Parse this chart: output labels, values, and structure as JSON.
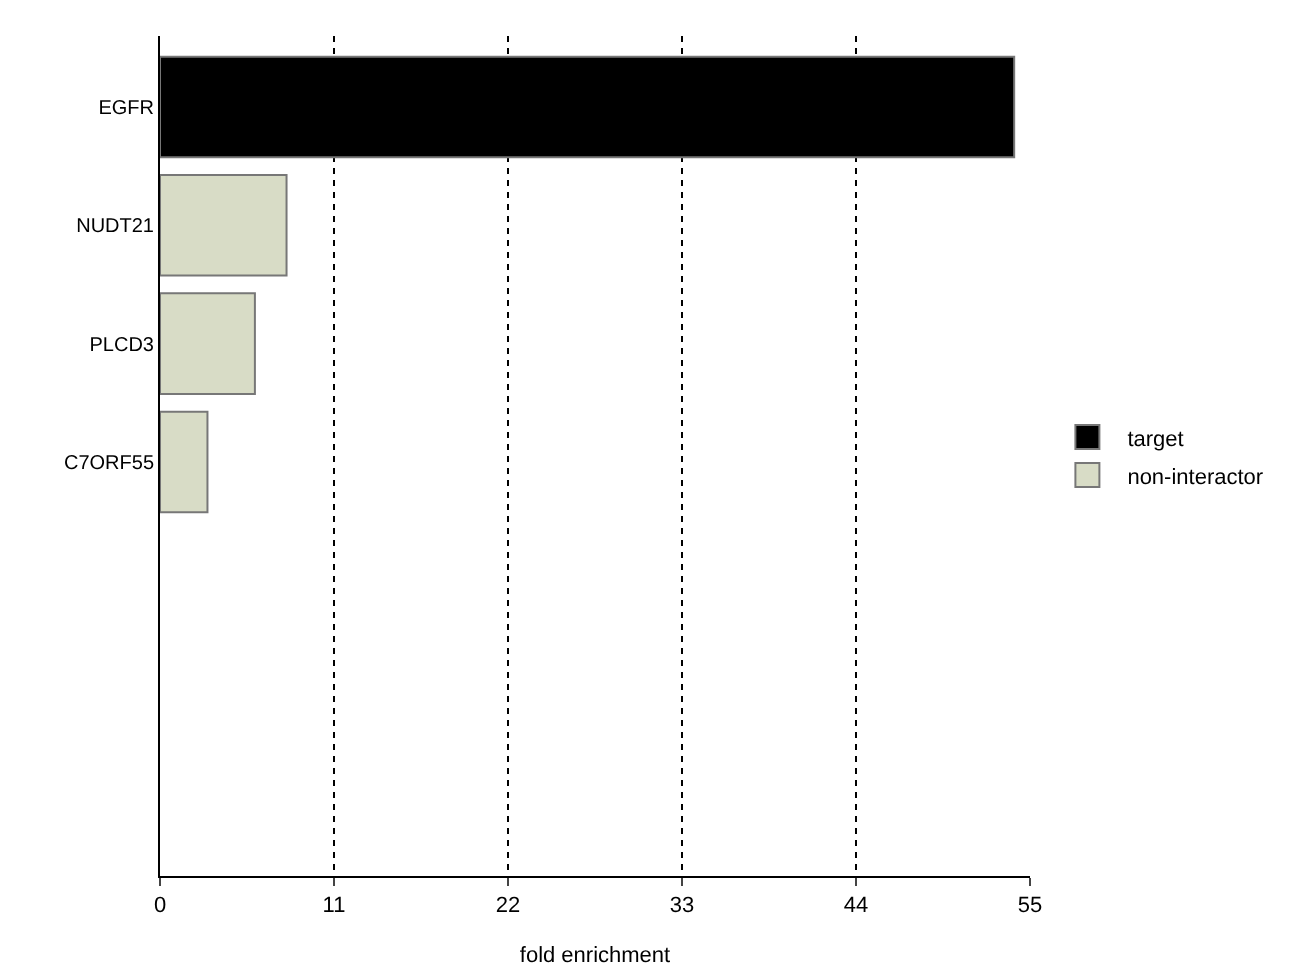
{
  "chart_data": {
    "type": "bar",
    "orientation": "horizontal",
    "xlabel": "fold enrichment",
    "categories": [
      "EGFR",
      "NUDT21",
      "PLCD3",
      "C7ORF55",
      null,
      null,
      null
    ],
    "series": [
      {
        "name": "target",
        "color": "#000000",
        "values": [
          54,
          null,
          null,
          null,
          null,
          null,
          null
        ]
      },
      {
        "name": "non-interactor",
        "color": "#d8dcc6",
        "values": [
          null,
          8,
          6,
          3,
          null,
          null,
          null
        ]
      }
    ],
    "xlim": [
      0,
      55
    ],
    "xticks": [
      0,
      11,
      22,
      33,
      44,
      55
    ],
    "grid": "x",
    "line_style": "dotted",
    "legend": "right"
  }
}
